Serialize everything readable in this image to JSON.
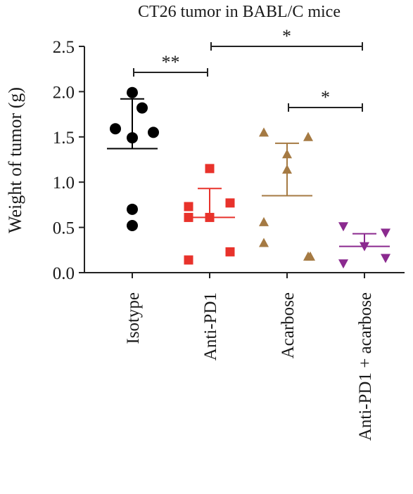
{
  "chart_data": {
    "type": "dot",
    "title": "CT26 tumor in BABL/C mice",
    "y_label": "Weight of tumor (g)",
    "ylim": [
      0,
      2.5
    ],
    "yticks": [
      {
        "value": 0,
        "label": "0.0"
      },
      {
        "value": 0.5,
        "label": "0.5"
      },
      {
        "value": 1,
        "label": "1.0"
      },
      {
        "value": 1.5,
        "label": "1.5"
      },
      {
        "value": 2,
        "label": "2.0"
      },
      {
        "value": 2.5,
        "label": "2.5"
      }
    ],
    "series": [
      {
        "name": "Isotype",
        "color": "#000000",
        "marker": "circle",
        "values": [
          1.99,
          1.82,
          1.59,
          1.49,
          1.55,
          0.7,
          0.52
        ],
        "mean": 1.37,
        "sd": 0.55
      },
      {
        "name": "Anti-PD1",
        "color": "#e8322b",
        "marker": "square",
        "values": [
          1.15,
          0.73,
          0.77,
          0.61,
          0.61,
          0.14,
          0.23
        ],
        "mean": 0.61,
        "sd": 0.32
      },
      {
        "name": "Acarbose",
        "color": "#a57a43",
        "marker": "triangle-up",
        "values": [
          1.55,
          1.5,
          1.31,
          1.14,
          0.56,
          0.33,
          0.18,
          0.18
        ],
        "mean": 0.85,
        "sd": 0.58
      },
      {
        "name": "Anti-PD1 + acarbose",
        "color": "#8b2a8f",
        "marker": "triangle-down",
        "values": [
          0.51,
          0.44,
          0.29,
          0.1,
          0.16
        ],
        "mean": 0.29,
        "sd": 0.14
      }
    ],
    "significance": [
      {
        "label": "**",
        "from": 0,
        "to": 1
      },
      {
        "label": "*",
        "from": 1,
        "to": 3
      },
      {
        "label": "*",
        "from": 2,
        "to": 3
      }
    ]
  }
}
